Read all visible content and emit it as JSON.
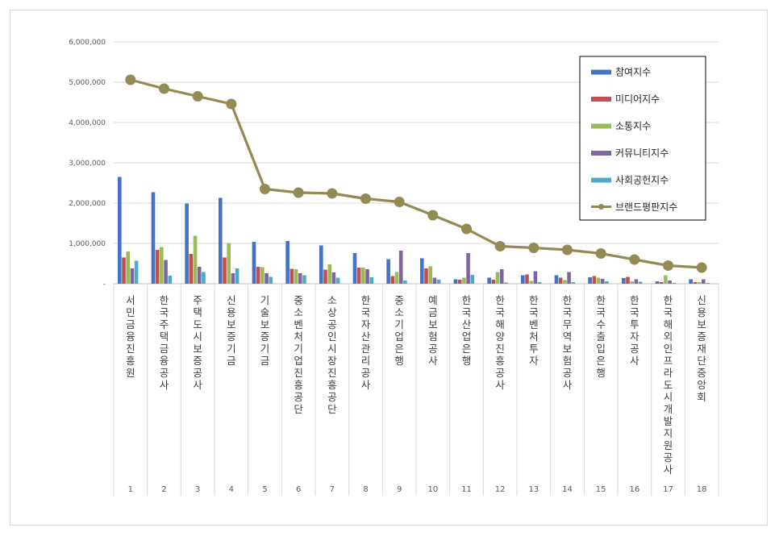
{
  "chart_data": {
    "type": "bar",
    "y_ticks": [
      "-",
      "1,000,000",
      "2,000,000",
      "3,000,000",
      "4,000,000",
      "5,000,000",
      "6,000,000"
    ],
    "ylim": [
      0,
      6000000
    ],
    "grid": true,
    "legend_position": "top-right",
    "categories": [
      "서민금융진흥원",
      "한국주택금융공사",
      "주택도시보증공사",
      "신용보증기금",
      "기술보증기금",
      "중소벤처기업진흥공단",
      "소상공인시장진흥공단",
      "한국자산관리공사",
      "중소기업은행",
      "예금보험공사",
      "한국산업은행",
      "한국해양진흥공사",
      "한국벤처투자",
      "한국무역보험공사",
      "한국수출입은행",
      "한국투자공사",
      "한국해외인프라도시개발지원공사",
      "신용보증재단중앙회"
    ],
    "indices": [
      "1",
      "2",
      "3",
      "4",
      "5",
      "6",
      "7",
      "8",
      "9",
      "10",
      "11",
      "12",
      "13",
      "14",
      "15",
      "16",
      "17",
      "18"
    ],
    "series": [
      {
        "name": "참여지수",
        "kind": "bar",
        "color": "#4472c4",
        "values": [
          2650000,
          2270000,
          1990000,
          2130000,
          1040000,
          1060000,
          950000,
          760000,
          610000,
          630000,
          110000,
          150000,
          210000,
          210000,
          160000,
          140000,
          60000,
          110000
        ]
      },
      {
        "name": "미디어지수",
        "kind": "bar",
        "color": "#c0504d",
        "values": [
          650000,
          840000,
          740000,
          650000,
          420000,
          370000,
          350000,
          400000,
          190000,
          380000,
          100000,
          100000,
          230000,
          150000,
          190000,
          170000,
          40000,
          40000
        ]
      },
      {
        "name": "소통지수",
        "kind": "bar",
        "color": "#9bbb59",
        "values": [
          800000,
          910000,
          1190000,
          1010000,
          410000,
          360000,
          480000,
          400000,
          290000,
          430000,
          150000,
          290000,
          70000,
          90000,
          150000,
          60000,
          210000,
          40000
        ]
      },
      {
        "name": "커뮤니티지수",
        "kind": "bar",
        "color": "#8064a2",
        "values": [
          380000,
          590000,
          420000,
          260000,
          260000,
          260000,
          280000,
          360000,
          820000,
          150000,
          760000,
          360000,
          310000,
          290000,
          120000,
          110000,
          80000,
          110000
        ]
      },
      {
        "name": "사회공헌지수",
        "kind": "bar",
        "color": "#4bacc6",
        "values": [
          570000,
          200000,
          290000,
          380000,
          170000,
          210000,
          150000,
          160000,
          80000,
          100000,
          220000,
          30000,
          40000,
          40000,
          60000,
          50000,
          20000,
          20000
        ]
      },
      {
        "name": "브랜드평판지수",
        "kind": "line",
        "color": "#948a54",
        "values": [
          5060000,
          4840000,
          4650000,
          4460000,
          2350000,
          2260000,
          2240000,
          2110000,
          2030000,
          1700000,
          1360000,
          930000,
          890000,
          840000,
          750000,
          600000,
          450000,
          400000
        ]
      }
    ]
  }
}
